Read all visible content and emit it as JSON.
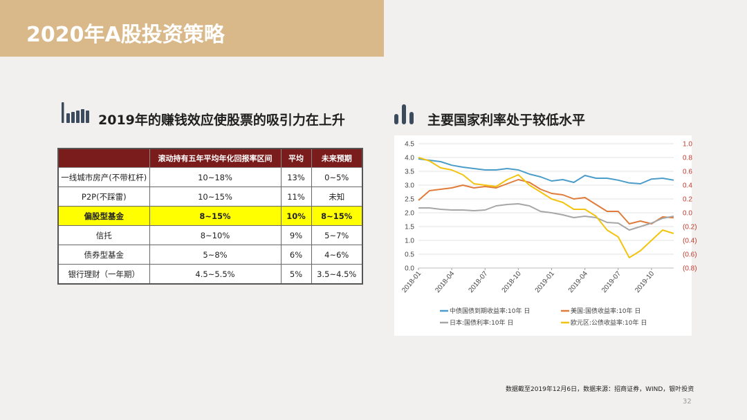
{
  "header": {
    "title": "2020年A股投资策略"
  },
  "left_section": {
    "title": "2019年的赚钱效应使股票的吸引力在上升",
    "icon": "bar-chart-icon",
    "table": {
      "headers": [
        "",
        "滚动持有五年平均年化回报率区间",
        "平均",
        "未来预期"
      ],
      "rows": [
        [
          "一线城市房产(不带杠杆)",
          "10~18%",
          "13%",
          "0~5%"
        ],
        [
          "P2P(不踩雷)",
          "10~15%",
          "11%",
          "未知"
        ],
        [
          "偏股型基金",
          "8~15%",
          "10%",
          "8~15%"
        ],
        [
          "信托",
          "8~10%",
          "9%",
          "5~7%"
        ],
        [
          "债券型基金",
          "5~8%",
          "6%",
          "4~6%"
        ],
        [
          "银行理财（一年期）",
          "4.5~5.5%",
          "5%",
          "3.5~4.5%"
        ]
      ],
      "highlight_row": 2,
      "header_bg": "#7b1c1c",
      "highlight_color": "#ffff00"
    }
  },
  "right_section": {
    "title": "主要国家利率处于较低水平",
    "icon": "bar-chart-icon"
  },
  "chart_data": {
    "type": "line",
    "x": [
      "2018-01",
      "2018-02",
      "2018-03",
      "2018-04",
      "2018-05",
      "2018-06",
      "2018-07",
      "2018-08",
      "2018-09",
      "2018-10",
      "2018-11",
      "2018-12",
      "2019-01",
      "2019-02",
      "2019-03",
      "2019-04",
      "2019-05",
      "2019-06",
      "2019-07",
      "2019-08",
      "2019-09",
      "2019-10",
      "2019-11",
      "2019-12"
    ],
    "x_ticks": [
      "2018-01",
      "2018-04",
      "2018-07",
      "2018-10",
      "2019-01",
      "2019-04",
      "2019-07",
      "2019-10"
    ],
    "y_left": {
      "range": [
        0.0,
        4.5
      ],
      "ticks": [
        "0.0",
        "0.5",
        "1.0",
        "1.5",
        "2.0",
        "2.5",
        "3.0",
        "3.5",
        "4.0",
        "4.5"
      ]
    },
    "y_right": {
      "range": [
        -0.8,
        1.0
      ],
      "ticks": [
        "1.0",
        "0.8",
        "0.6",
        "0.4",
        "0.2",
        "0.0",
        "(0.2)",
        "(0.4)",
        "(0.6)",
        "(0.8)"
      ],
      "color": "#c0392b"
    },
    "series": [
      {
        "name": "中债国债到期收益率:10年 日",
        "axis": "left",
        "color": "#4a9cc9",
        "values": [
          3.95,
          3.9,
          3.85,
          3.72,
          3.65,
          3.6,
          3.55,
          3.55,
          3.6,
          3.55,
          3.4,
          3.3,
          3.15,
          3.2,
          3.1,
          3.35,
          3.25,
          3.25,
          3.18,
          3.08,
          3.05,
          3.22,
          3.25,
          3.18
        ]
      },
      {
        "name": "美国:国债收益率:10年 日",
        "axis": "left",
        "color": "#e07b39",
        "values": [
          2.45,
          2.8,
          2.85,
          2.9,
          3.0,
          2.9,
          2.95,
          2.9,
          3.05,
          3.2,
          3.1,
          2.85,
          2.7,
          2.65,
          2.5,
          2.55,
          2.3,
          2.05,
          2.05,
          1.6,
          1.7,
          1.6,
          1.85,
          1.82
        ]
      },
      {
        "name": "日本:国债利率:10年 日",
        "axis": "right",
        "color": "#a6a6a6",
        "values": [
          0.07,
          0.07,
          0.05,
          0.04,
          0.04,
          0.03,
          0.04,
          0.1,
          0.12,
          0.13,
          0.1,
          0.02,
          0.0,
          -0.03,
          -0.07,
          -0.05,
          -0.07,
          -0.14,
          -0.15,
          -0.25,
          -0.2,
          -0.15,
          -0.08,
          -0.05
        ]
      },
      {
        "name": "欧元区:公债收益率:10年 日",
        "axis": "right",
        "color": "#f2c40f",
        "values": [
          0.8,
          0.75,
          0.65,
          0.62,
          0.55,
          0.42,
          0.4,
          0.38,
          0.48,
          0.55,
          0.4,
          0.3,
          0.2,
          0.15,
          0.05,
          0.05,
          -0.05,
          -0.25,
          -0.35,
          -0.65,
          -0.55,
          -0.4,
          -0.25,
          -0.3
        ]
      }
    ]
  },
  "footnote": "数据截至2019年12月6日，数据来源：招商证券，WIND，银叶投资",
  "page_number": "32"
}
